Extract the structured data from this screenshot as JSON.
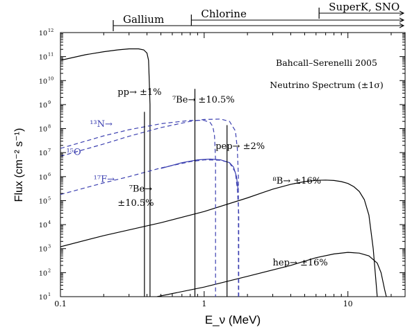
{
  "chart_data": {
    "type": "line",
    "title": "Bahcall–Serenelli 2005",
    "subtitle": "Neutrino Spectrum (±1σ)",
    "xlabel": "E_ν (MeV)",
    "ylabel": "Flux (cm⁻² s⁻¹)",
    "xscale": "log",
    "yscale": "log",
    "xlim": [
      0.1,
      25
    ],
    "ylim": [
      10,
      1000000000000.0
    ],
    "x_ticks": [
      {
        "value": 0.1,
        "label": "0.1"
      },
      {
        "value": 1,
        "label": "1"
      },
      {
        "value": 10,
        "label": "10"
      }
    ],
    "y_ticks": [
      {
        "value": 10,
        "label": "10",
        "sup": "1"
      },
      {
        "value": 100,
        "label": "10",
        "sup": "2"
      },
      {
        "value": 1000,
        "label": "10",
        "sup": "3"
      },
      {
        "value": 10000,
        "label": "10",
        "sup": "4"
      },
      {
        "value": 100000,
        "label": "10",
        "sup": "5"
      },
      {
        "value": 1000000,
        "label": "10",
        "sup": "6"
      },
      {
        "value": 10000000,
        "label": "10",
        "sup": "7"
      },
      {
        "value": 100000000,
        "label": "10",
        "sup": "8"
      },
      {
        "value": 1000000000,
        "label": "10",
        "sup": "9"
      },
      {
        "value": 10000000000,
        "label": "10",
        "sup": "10"
      },
      {
        "value": 100000000000,
        "label": "10",
        "sup": "11"
      },
      {
        "value": 1000000000000,
        "label": "10",
        "sup": "12"
      }
    ],
    "thresholds": [
      {
        "name": "Gallium",
        "energy": 0.233
      },
      {
        "name": "Chlorine",
        "energy": 0.814
      },
      {
        "name": "SuperK, SNO",
        "energy": 6.3
      }
    ],
    "series": [
      {
        "name": "pp",
        "color": "#000000",
        "dash": false,
        "x": [
          0.1,
          0.15,
          0.2,
          0.25,
          0.3,
          0.35,
          0.38,
          0.4,
          0.41,
          0.415,
          0.42,
          0.42
        ],
        "y": [
          70000000000.0,
          120000000000.0,
          160000000000.0,
          190000000000.0,
          210000000000.0,
          210000000000.0,
          190000000000.0,
          140000000000.0,
          70000000000.0,
          10000000000.0,
          1000000000.0,
          10
        ]
      },
      {
        "name": "⁸B",
        "color": "#000000",
        "dash": false,
        "x": [
          0.1,
          0.2,
          0.5,
          1,
          2,
          3,
          4,
          5,
          6,
          7,
          8,
          9,
          10,
          11,
          12,
          13,
          14,
          15,
          16
        ],
        "y": [
          1200,
          3500,
          12000,
          35000,
          130000,
          300000,
          480000,
          620000,
          700000,
          720000,
          690000,
          620000,
          520000,
          380000,
          240000,
          110000,
          25000,
          1000,
          10
        ]
      },
      {
        "name": "hep",
        "color": "#000000",
        "dash": false,
        "x": [
          0.47,
          1,
          2,
          4,
          6,
          8,
          10,
          12,
          14,
          16,
          17,
          18,
          18.5
        ],
        "y": [
          10,
          25,
          70,
          200,
          420,
          600,
          700,
          650,
          500,
          250,
          100,
          20,
          10
        ]
      },
      {
        "name": "¹³N",
        "color": "#3b3fb0",
        "dash": true,
        "x": [
          0.1,
          0.2,
          0.3,
          0.5,
          0.8,
          1,
          1.1,
          1.15,
          1.18,
          1.2,
          1.2
        ],
        "y": [
          15000000.0,
          50000000.0,
          90000000.0,
          160000000.0,
          220000000.0,
          220000000.0,
          180000000.0,
          120000000.0,
          50000000.0,
          5000000.0,
          10
        ]
      },
      {
        "name": "¹⁵O",
        "color": "#3b3fb0",
        "dash": true,
        "x": [
          0.1,
          0.2,
          0.3,
          0.5,
          0.8,
          1,
          1.3,
          1.5,
          1.65,
          1.7,
          1.73,
          1.73
        ],
        "y": [
          7000000.0,
          23000000.0,
          48000000.0,
          110000000.0,
          200000000.0,
          240000000.0,
          250000000.0,
          200000000.0,
          80000000.0,
          15000000.0,
          1000000.0,
          10
        ]
      },
      {
        "name": "¹⁷F",
        "color": "#3b3fb0",
        "dash": true,
        "x": [
          0.1,
          0.2,
          0.3,
          0.5,
          0.8,
          1,
          1.3,
          1.5,
          1.65,
          1.7,
          1.74,
          1.74
        ],
        "y": [
          180000.0,
          550000.0,
          1000000.0,
          2300000.0,
          4200000.0,
          5000000.0,
          4800000.0,
          3800000.0,
          1500000.0,
          300000.0,
          30000.0,
          10
        ]
      },
      {
        "name": "",
        "color": "#3b3fb0",
        "dash": false,
        "x": [
          0.5,
          0.7,
          0.9,
          1.1,
          1.3,
          1.5,
          1.6,
          1.68,
          1.72
        ],
        "y": [
          2200000.0,
          3800000.0,
          5000000.0,
          5400000.0,
          5000000.0,
          3800000.0,
          2500000.0,
          1000000.0,
          300000.0
        ]
      }
    ],
    "lines": [
      {
        "name": "⁷Be 0.38",
        "energy": 0.384,
        "flux": 500000000.0
      },
      {
        "name": "⁷Be 0.86",
        "energy": 0.862,
        "flux": 4500000000.0
      },
      {
        "name": "pep",
        "energy": 1.442,
        "flux": 140000000.0
      }
    ],
    "annotations": [
      {
        "text": "pp→ ±1%",
        "x": 0.25,
        "y": 2500000000.0,
        "color": "#000000"
      },
      {
        "text": "⁷Be→ ±10.5%",
        "x": 0.6,
        "y": 1200000000.0,
        "color": "#000000"
      },
      {
        "text": "¹³N→",
        "x": 0.16,
        "y": 120000000.0,
        "color": "#3b3fb0"
      },
      {
        "text": "¹⁵O",
        "x": 0.11,
        "y": 8000000.0,
        "color": "#3b3fb0"
      },
      {
        "text": "pep→ ±2%",
        "x": 1.2,
        "y": 14000000.0,
        "color": "#000000"
      },
      {
        "text": "¹⁷F→",
        "x": 0.17,
        "y": 600000.0,
        "color": "#3b3fb0"
      },
      {
        "text": "⁷Be→",
        "x": 0.3,
        "y": 240000.0,
        "color": "#000000"
      },
      {
        "text": "±10.5%",
        "x": 0.25,
        "y": 60000.0,
        "color": "#000000"
      },
      {
        "text": "⁸B→ ±16%",
        "x": 3,
        "y": 500000.0,
        "color": "#000000"
      },
      {
        "text": "hep→ ±16%",
        "x": 3,
        "y": 200,
        "color": "#000000"
      }
    ]
  }
}
